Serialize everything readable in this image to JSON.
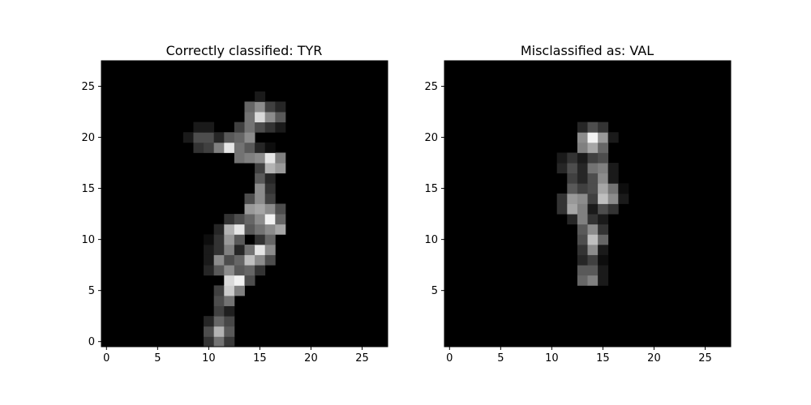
{
  "chart_data": [
    {
      "type": "heatmap",
      "title": "Correctly classified: TYR",
      "xlabel": "",
      "ylabel": "",
      "colormap": "gray",
      "xlim": [
        -0.5,
        27.5
      ],
      "ylim": [
        27.5,
        -0.5
      ],
      "x_ticks": [
        0,
        5,
        10,
        15,
        20,
        25
      ],
      "y_ticks": [
        0,
        5,
        10,
        15,
        20,
        25
      ],
      "grid": false,
      "pixels": [
        [
          0,
          10,
          0.2
        ],
        [
          0,
          11,
          0.45
        ],
        [
          0,
          12,
          0.22
        ],
        [
          1,
          10,
          0.3
        ],
        [
          1,
          11,
          0.7
        ],
        [
          1,
          12,
          0.35
        ],
        [
          2,
          10,
          0.15
        ],
        [
          2,
          11,
          0.4
        ],
        [
          2,
          12,
          0.28
        ],
        [
          3,
          11,
          0.25
        ],
        [
          3,
          12,
          0.12
        ],
        [
          4,
          11,
          0.3
        ],
        [
          4,
          12,
          0.45
        ],
        [
          5,
          11,
          0.25
        ],
        [
          5,
          12,
          0.8
        ],
        [
          5,
          13,
          0.5
        ],
        [
          6,
          12,
          0.85
        ],
        [
          6,
          13,
          0.95
        ],
        [
          6,
          14,
          0.3
        ],
        [
          7,
          10,
          0.15
        ],
        [
          7,
          11,
          0.35
        ],
        [
          7,
          12,
          0.55
        ],
        [
          7,
          13,
          0.35
        ],
        [
          7,
          14,
          0.4
        ],
        [
          7,
          15,
          0.2
        ],
        [
          8,
          10,
          0.1
        ],
        [
          8,
          11,
          0.55
        ],
        [
          8,
          12,
          0.3
        ],
        [
          8,
          13,
          0.4
        ],
        [
          8,
          14,
          0.75
        ],
        [
          8,
          15,
          0.55
        ],
        [
          8,
          16,
          0.3
        ],
        [
          9,
          10,
          0.1
        ],
        [
          9,
          11,
          0.2
        ],
        [
          9,
          12,
          0.5
        ],
        [
          9,
          13,
          0.15
        ],
        [
          9,
          14,
          0.45
        ],
        [
          9,
          15,
          0.9
        ],
        [
          9,
          16,
          0.55
        ],
        [
          10,
          10,
          0.05
        ],
        [
          10,
          11,
          0.2
        ],
        [
          10,
          12,
          0.6
        ],
        [
          10,
          13,
          0.35
        ],
        [
          10,
          15,
          0.2
        ],
        [
          10,
          16,
          0.4
        ],
        [
          11,
          11,
          0.15
        ],
        [
          11,
          12,
          0.7
        ],
        [
          11,
          13,
          0.9
        ],
        [
          11,
          14,
          0.35
        ],
        [
          11,
          15,
          0.45
        ],
        [
          11,
          16,
          0.55
        ],
        [
          11,
          17,
          0.65
        ],
        [
          12,
          12,
          0.2
        ],
        [
          12,
          13,
          0.3
        ],
        [
          12,
          14,
          0.4
        ],
        [
          12,
          15,
          0.55
        ],
        [
          12,
          16,
          0.95
        ],
        [
          12,
          17,
          0.4
        ],
        [
          13,
          14,
          0.6
        ],
        [
          13,
          15,
          0.65
        ],
        [
          13,
          16,
          0.55
        ],
        [
          13,
          17,
          0.3
        ],
        [
          14,
          14,
          0.3
        ],
        [
          14,
          15,
          0.55
        ],
        [
          14,
          16,
          0.25
        ],
        [
          15,
          15,
          0.55
        ],
        [
          15,
          16,
          0.2
        ],
        [
          16,
          15,
          0.35
        ],
        [
          16,
          16,
          0.15
        ],
        [
          17,
          15,
          0.25
        ],
        [
          17,
          16,
          0.7
        ],
        [
          17,
          17,
          0.6
        ],
        [
          18,
          13,
          0.45
        ],
        [
          18,
          14,
          0.5
        ],
        [
          18,
          15,
          0.55
        ],
        [
          18,
          16,
          0.9
        ],
        [
          18,
          17,
          0.5
        ],
        [
          19,
          9,
          0.2
        ],
        [
          19,
          10,
          0.25
        ],
        [
          19,
          11,
          0.5
        ],
        [
          19,
          12,
          0.9
        ],
        [
          19,
          13,
          0.45
        ],
        [
          19,
          14,
          0.35
        ],
        [
          19,
          15,
          0.15
        ],
        [
          19,
          16,
          0.05
        ],
        [
          20,
          8,
          0.1
        ],
        [
          20,
          9,
          0.3
        ],
        [
          20,
          10,
          0.3
        ],
        [
          20,
          11,
          0.15
        ],
        [
          20,
          12,
          0.35
        ],
        [
          20,
          13,
          0.4
        ],
        [
          20,
          14,
          0.55
        ],
        [
          21,
          9,
          0.1
        ],
        [
          21,
          10,
          0.1
        ],
        [
          21,
          13,
          0.25
        ],
        [
          21,
          14,
          0.45
        ],
        [
          21,
          15,
          0.3
        ],
        [
          21,
          16,
          0.2
        ],
        [
          21,
          17,
          0.1
        ],
        [
          22,
          14,
          0.45
        ],
        [
          22,
          15,
          0.85
        ],
        [
          22,
          16,
          0.55
        ],
        [
          22,
          17,
          0.35
        ],
        [
          23,
          14,
          0.4
        ],
        [
          23,
          15,
          0.55
        ],
        [
          23,
          16,
          0.25
        ],
        [
          23,
          17,
          0.15
        ],
        [
          24,
          15,
          0.1
        ]
      ]
    },
    {
      "type": "heatmap",
      "title": "Misclassified as: VAL",
      "xlabel": "",
      "ylabel": "",
      "colormap": "gray",
      "xlim": [
        -0.5,
        27.5
      ],
      "ylim": [
        27.5,
        -0.5
      ],
      "x_ticks": [
        0,
        5,
        10,
        15,
        20,
        25
      ],
      "y_ticks": [
        5,
        10,
        15,
        20,
        25
      ],
      "grid": false,
      "pixels": [
        [
          6,
          13,
          0.4
        ],
        [
          6,
          14,
          0.5
        ],
        [
          6,
          15,
          0.1
        ],
        [
          7,
          13,
          0.35
        ],
        [
          7,
          14,
          0.35
        ],
        [
          7,
          15,
          0.1
        ],
        [
          8,
          13,
          0.15
        ],
        [
          8,
          14,
          0.25
        ],
        [
          8,
          15,
          0.05
        ],
        [
          9,
          13,
          0.2
        ],
        [
          9,
          14,
          0.55
        ],
        [
          9,
          15,
          0.1
        ],
        [
          10,
          13,
          0.3
        ],
        [
          10,
          14,
          0.75
        ],
        [
          10,
          15,
          0.4
        ],
        [
          11,
          13,
          0.35
        ],
        [
          11,
          14,
          0.55
        ],
        [
          11,
          15,
          0.2
        ],
        [
          12,
          12,
          0.15
        ],
        [
          12,
          13,
          0.5
        ],
        [
          12,
          14,
          0.2
        ],
        [
          12,
          15,
          0.1
        ],
        [
          13,
          11,
          0.2
        ],
        [
          13,
          12,
          0.65
        ],
        [
          13,
          13,
          0.5
        ],
        [
          13,
          14,
          0.1
        ],
        [
          13,
          15,
          0.3
        ],
        [
          13,
          16,
          0.2
        ],
        [
          14,
          11,
          0.2
        ],
        [
          14,
          12,
          0.6
        ],
        [
          14,
          13,
          0.55
        ],
        [
          14,
          14,
          0.25
        ],
        [
          14,
          15,
          0.75
        ],
        [
          14,
          16,
          0.55
        ],
        [
          14,
          17,
          0.1
        ],
        [
          15,
          12,
          0.35
        ],
        [
          15,
          13,
          0.25
        ],
        [
          15,
          14,
          0.3
        ],
        [
          15,
          15,
          0.65
        ],
        [
          15,
          16,
          0.45
        ],
        [
          15,
          17,
          0.05
        ],
        [
          16,
          12,
          0.25
        ],
        [
          16,
          13,
          0.15
        ],
        [
          16,
          14,
          0.3
        ],
        [
          16,
          15,
          0.55
        ],
        [
          16,
          16,
          0.1
        ],
        [
          17,
          11,
          0.15
        ],
        [
          17,
          12,
          0.3
        ],
        [
          17,
          13,
          0.15
        ],
        [
          17,
          14,
          0.45
        ],
        [
          17,
          15,
          0.5
        ],
        [
          17,
          16,
          0.1
        ],
        [
          18,
          11,
          0.1
        ],
        [
          18,
          12,
          0.2
        ],
        [
          18,
          13,
          0.1
        ],
        [
          18,
          14,
          0.25
        ],
        [
          18,
          15,
          0.3
        ],
        [
          19,
          13,
          0.5
        ],
        [
          19,
          14,
          0.65
        ],
        [
          19,
          15,
          0.4
        ],
        [
          20,
          13,
          0.55
        ],
        [
          20,
          14,
          0.95
        ],
        [
          20,
          15,
          0.6
        ],
        [
          20,
          16,
          0.1
        ],
        [
          21,
          13,
          0.15
        ],
        [
          21,
          14,
          0.3
        ],
        [
          21,
          15,
          0.2
        ]
      ]
    }
  ]
}
